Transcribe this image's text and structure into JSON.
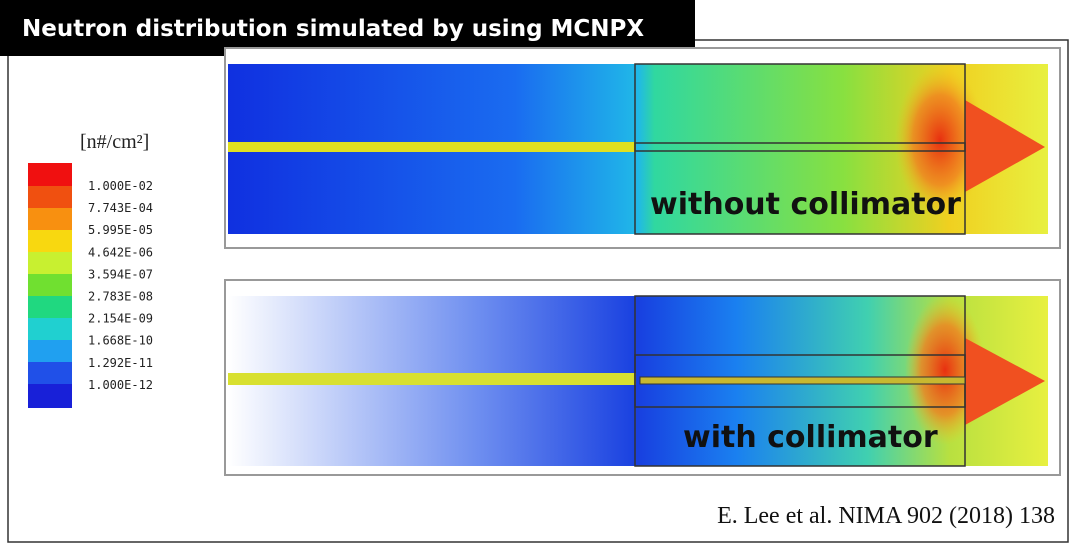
{
  "header": {
    "title": "Neutron distribution simulated by using MCNPX"
  },
  "legend": {
    "unit": "[n#/cm²]",
    "labels": [
      "1.000E-02",
      "7.743E-04",
      "5.995E-05",
      "4.642E-06",
      "3.594E-07",
      "2.783E-08",
      "2.154E-09",
      "1.668E-10",
      "1.292E-11",
      "1.000E-12"
    ]
  },
  "panels": [
    {
      "label": "without collimator"
    },
    {
      "label": "with collimator"
    }
  ],
  "citation": "E. Lee et al. NIMA 902 (2018) 138"
}
